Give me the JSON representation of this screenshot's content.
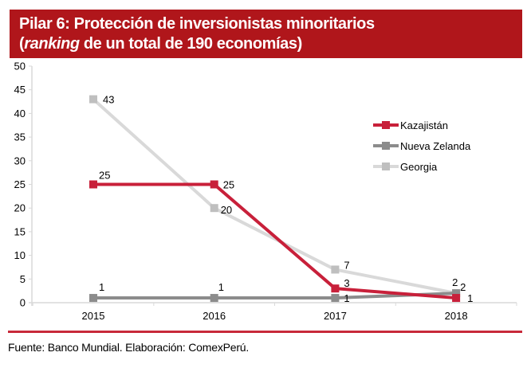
{
  "header": {
    "title_line1": "Pilar 6: Protección de inversionistas minoritarios",
    "title_line2_italic": "ranking",
    "title_line2_rest": " de un total de 190 economías)",
    "title_line2_open": "("
  },
  "footer": {
    "source": "Fuente: Banco Mundial. Elaboración: ComexPerú."
  },
  "chart_data": {
    "type": "line",
    "title": "Pilar 6: Protección de inversionistas minoritarios (ranking de un total de 190 economías)",
    "xlabel": "",
    "ylabel": "",
    "categories": [
      "2015",
      "2016",
      "2017",
      "2018"
    ],
    "ylim": [
      0,
      50
    ],
    "yticks": [
      0,
      5,
      10,
      15,
      20,
      25,
      30,
      35,
      40,
      45,
      50
    ],
    "grid": false,
    "legend_position": "right",
    "series": [
      {
        "name": "Kazajistán",
        "values": [
          25,
          25,
          3,
          1
        ],
        "color": "#c8203a",
        "marker": "square"
      },
      {
        "name": "Nueva Zelanda",
        "values": [
          1,
          1,
          1,
          2
        ],
        "color": "#8c8c8c",
        "marker": "square"
      },
      {
        "name": "Georgia",
        "values": [
          43,
          20,
          7,
          2
        ],
        "color": "#d9d9d9",
        "marker_color": "#bfbfbf",
        "marker": "square"
      }
    ]
  }
}
